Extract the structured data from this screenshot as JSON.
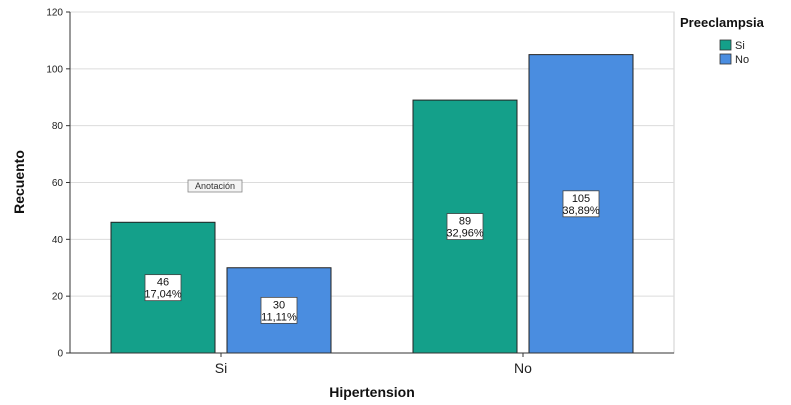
{
  "chart_data": {
    "type": "bar",
    "categories": [
      "Si",
      "No"
    ],
    "series": [
      {
        "name": "Si",
        "color": "#14a08a",
        "values": [
          46,
          89
        ],
        "percents": [
          "17,04%",
          "32,96%"
        ]
      },
      {
        "name": "No",
        "color": "#4a8de0",
        "values": [
          30,
          105
        ],
        "percents": [
          "11,11%",
          "38,89%"
        ]
      }
    ],
    "xlabel": "Hipertension",
    "ylabel": "Recuento",
    "ylim": [
      0,
      120
    ],
    "yticks": [
      0,
      20,
      40,
      60,
      80,
      100,
      120
    ],
    "grid": true,
    "legend": {
      "title": "Preeclampsia",
      "position": "top-right"
    },
    "annotation": "Anotación"
  }
}
